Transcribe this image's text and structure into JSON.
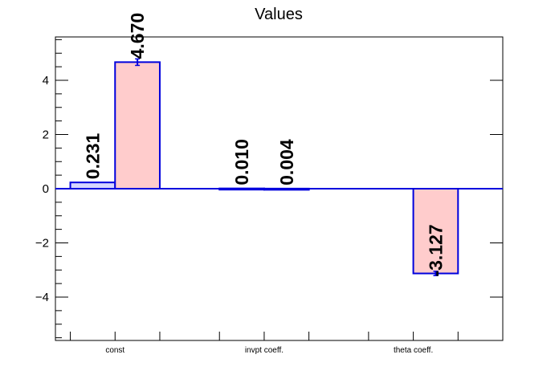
{
  "chart_data": {
    "type": "bar",
    "title": "Values",
    "xlabel": "",
    "ylabel": "",
    "categories": [
      "const",
      "invpt coeff.",
      "theta coeff."
    ],
    "ylim": [
      -5.6,
      5.6
    ],
    "yticks": [
      -4,
      -2,
      0,
      2,
      4
    ],
    "ytick_labels": [
      "−4",
      "−2",
      "0",
      "2",
      "4"
    ],
    "grid": false,
    "legend": "none",
    "series": [
      {
        "values": [
          0.231,
          0.01,
          null
        ],
        "labels": [
          "0.231",
          "0.010",
          ""
        ],
        "errors": [
          0,
          0,
          0
        ],
        "fill": "#d6d6ff",
        "stroke": "#0000dd"
      },
      {
        "values": [
          4.67,
          0.004,
          -3.127
        ],
        "labels": [
          "4.670",
          "0.004",
          "-3.127"
        ],
        "errors": [
          0.12,
          0,
          0.08
        ],
        "fill": "#ffcccc",
        "stroke": "#0000dd"
      }
    ],
    "zero_line_color": "#0000dd",
    "axis_color": "#000000"
  }
}
